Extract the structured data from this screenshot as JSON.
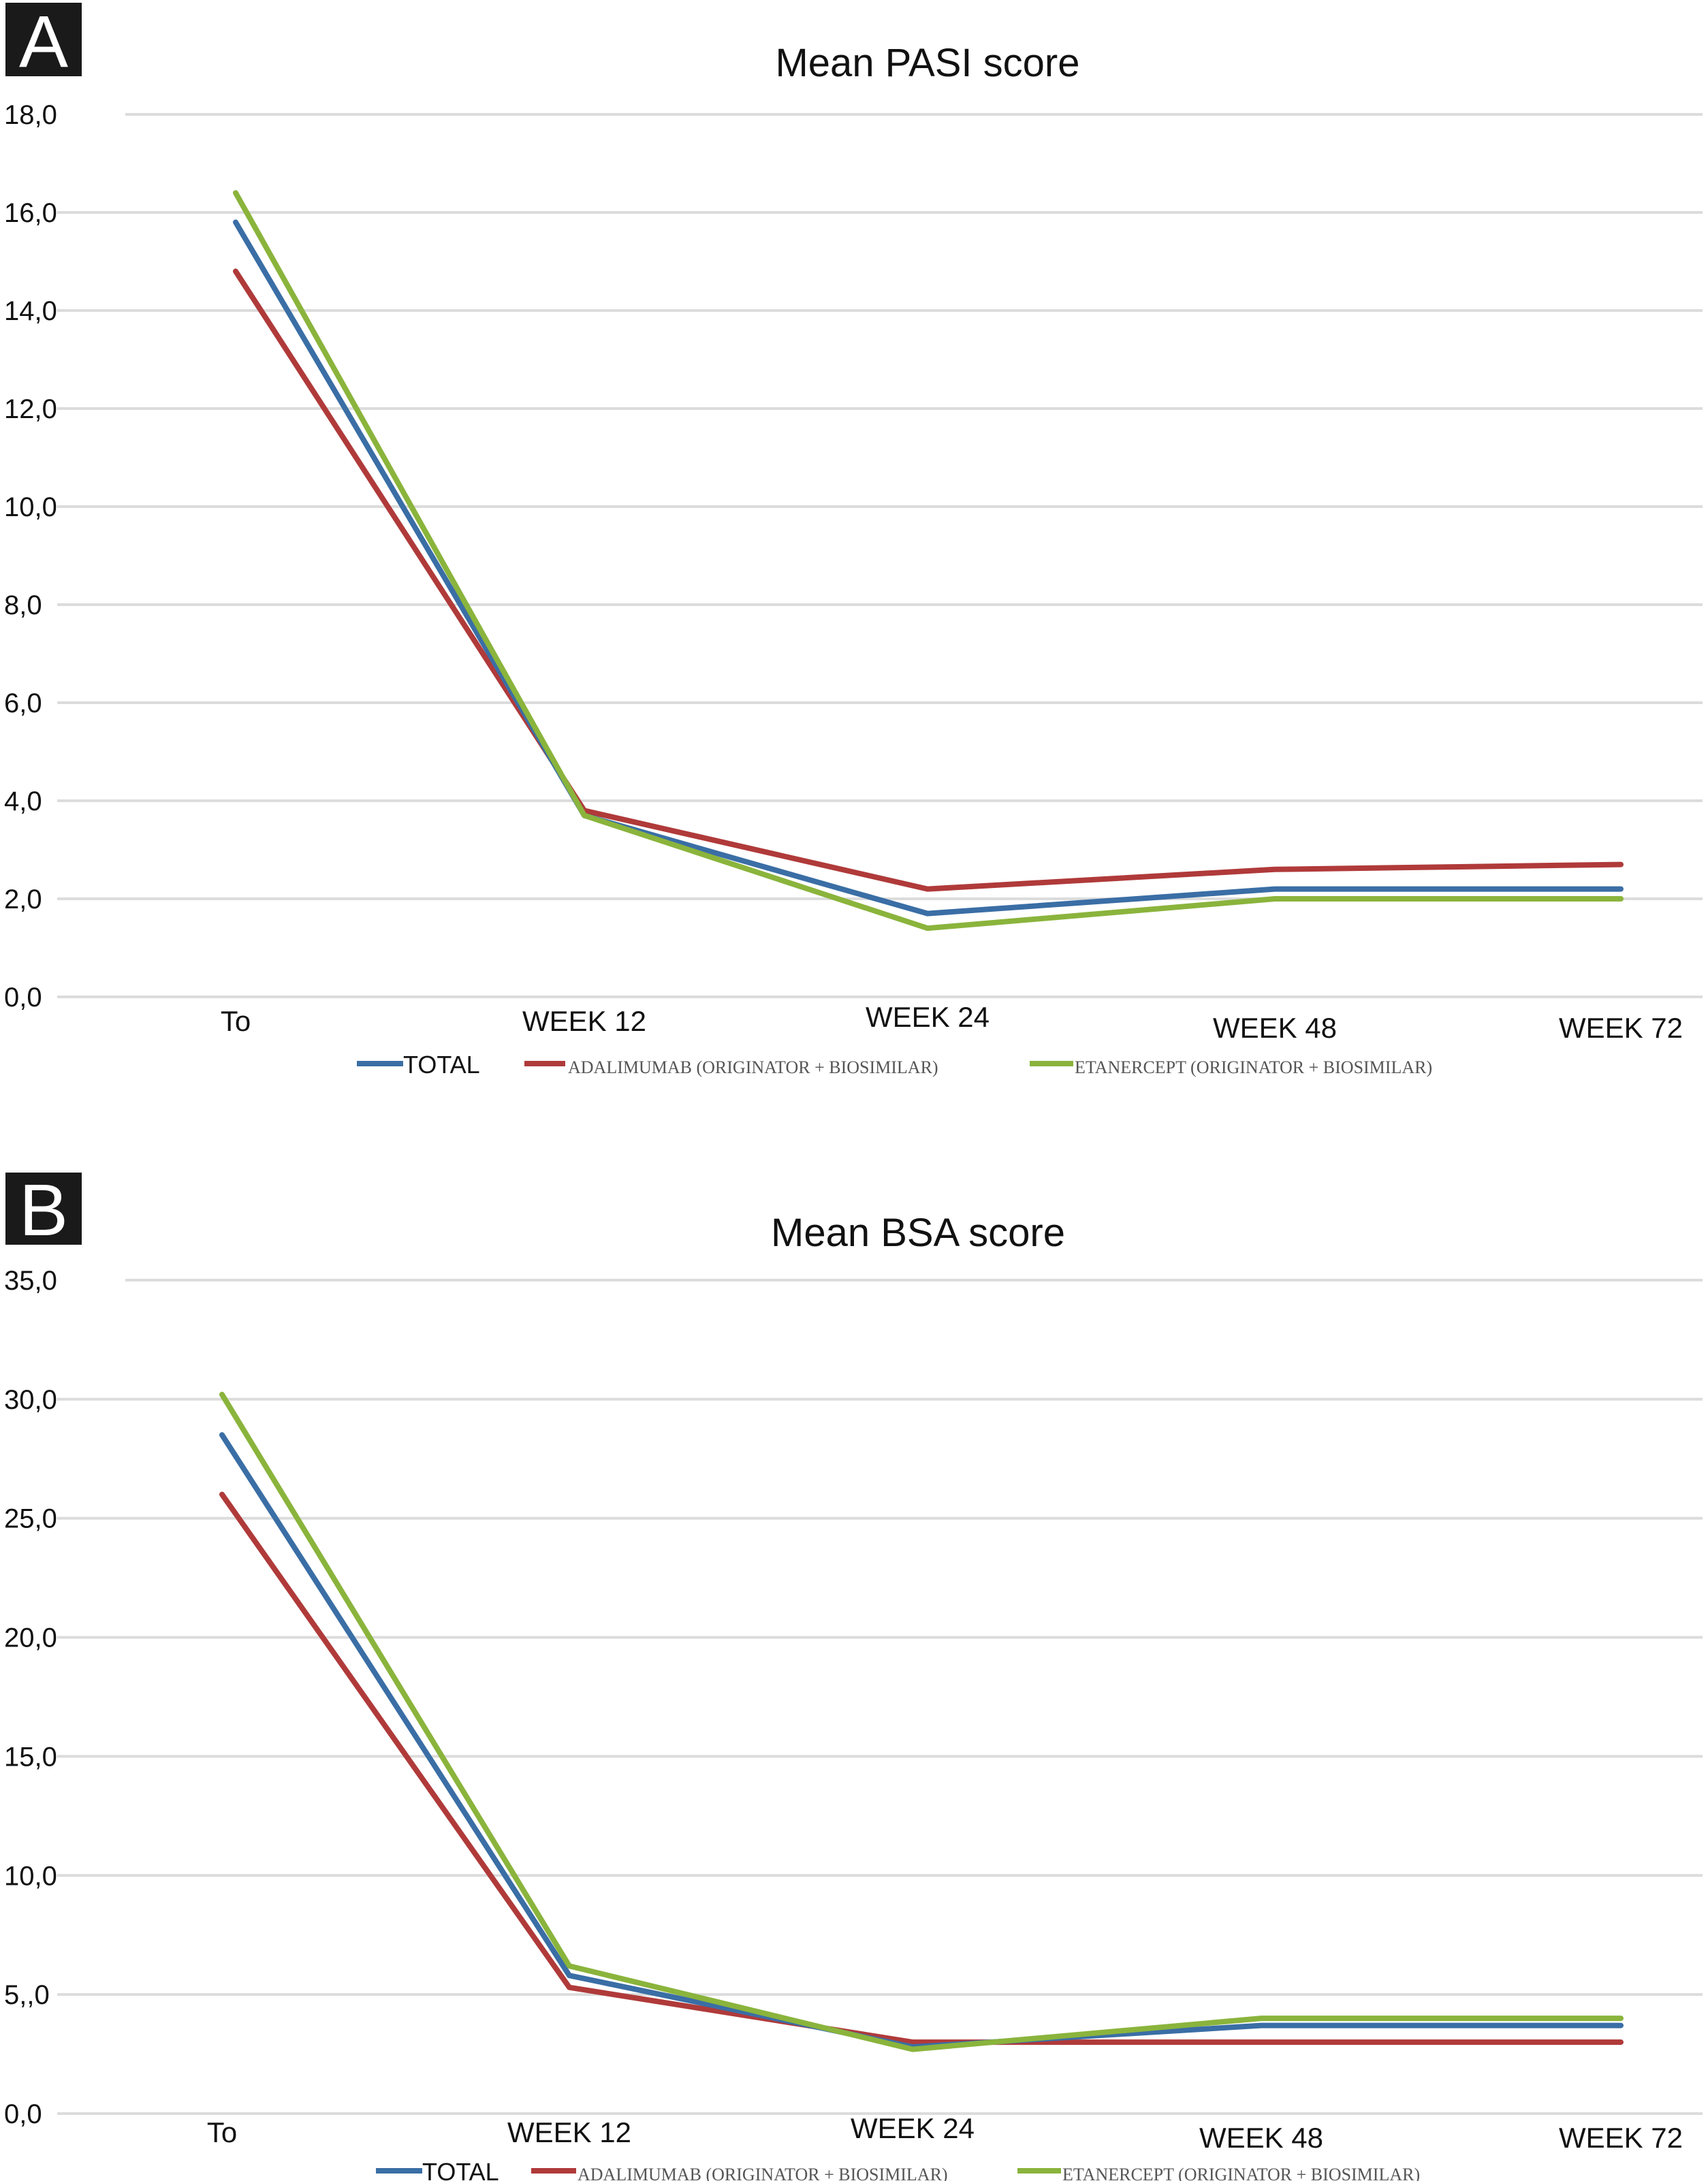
{
  "chart_data": [
    {
      "panel_label": "A",
      "type": "line",
      "title": "Mean PASI score",
      "categories": [
        "To",
        "WEEK 12",
        "WEEK 24",
        "WEEK 48",
        "WEEK 72"
      ],
      "ylim": [
        0,
        18
      ],
      "yticks": [
        "0,0",
        "2,0",
        "4,0",
        "6,0",
        "8,0",
        "10,0",
        "12,0",
        "14,0",
        "16,0",
        "18,0"
      ],
      "grid": true,
      "legend_position": "bottom",
      "series": [
        {
          "name": "TOTAL",
          "color": "#3a6ea5",
          "values": [
            15.8,
            3.7,
            1.7,
            2.2,
            2.2
          ]
        },
        {
          "name": "ADALIMUMAB (ORIGINATOR + BIOSIMILAR)",
          "color": "#b03a3a",
          "values": [
            14.8,
            3.8,
            2.2,
            2.6,
            2.7
          ]
        },
        {
          "name": "ETANERCEPT (ORIGINATOR + BIOSIMILAR)",
          "color": "#8ab43c",
          "values": [
            16.4,
            3.7,
            1.4,
            2.0,
            2.0
          ]
        }
      ]
    },
    {
      "panel_label": "B",
      "type": "line",
      "title": "Mean BSA score",
      "categories": [
        "To",
        "WEEK 12",
        "WEEK 24",
        "WEEK 48",
        "WEEK 72"
      ],
      "ylim": [
        0,
        35
      ],
      "yticks": [
        "0,0",
        "5,,0",
        "10,0",
        "15,0",
        "20,0",
        "25,0",
        "30,0",
        "35,0"
      ],
      "grid": true,
      "legend_position": "bottom",
      "series": [
        {
          "name": "TOTAL",
          "color": "#3a6ea5",
          "values": [
            28.5,
            5.8,
            2.8,
            3.7,
            3.7
          ]
        },
        {
          "name": "ADALIMUMAB (ORIGINATOR + BIOSIMILAR)",
          "color": "#b03a3a",
          "values": [
            26.0,
            5.3,
            3.0,
            3.0,
            3.0
          ]
        },
        {
          "name": "ETANERCEPT (ORIGINATOR + BIOSIMILAR)",
          "color": "#8ab43c",
          "values": [
            30.2,
            6.2,
            2.7,
            4.0,
            4.0
          ]
        }
      ]
    }
  ]
}
